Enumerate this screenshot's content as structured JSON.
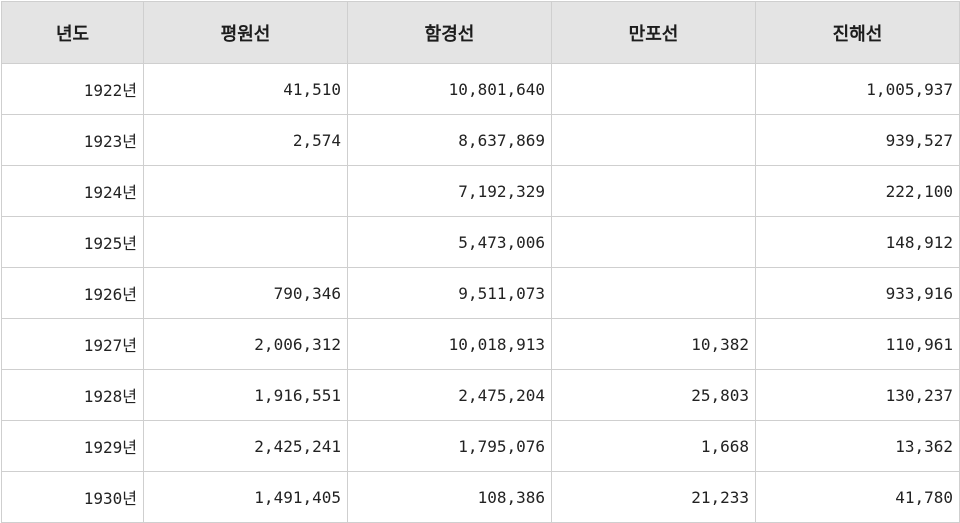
{
  "table": {
    "headers": [
      "년도",
      "평원선",
      "함경선",
      "만포선",
      "진해선"
    ],
    "rows": [
      [
        "1922년",
        "41,510",
        "10,801,640",
        "",
        "1,005,937"
      ],
      [
        "1923년",
        "2,574",
        "8,637,869",
        "",
        "939,527"
      ],
      [
        "1924년",
        "",
        "7,192,329",
        "",
        "222,100"
      ],
      [
        "1925년",
        "",
        "5,473,006",
        "",
        "148,912"
      ],
      [
        "1926년",
        "790,346",
        "9,511,073",
        "",
        "933,916"
      ],
      [
        "1927년",
        "2,006,312",
        "10,018,913",
        "10,382",
        "110,961"
      ],
      [
        "1928년",
        "1,916,551",
        "2,475,204",
        "25,803",
        "130,237"
      ],
      [
        "1929년",
        "2,425,241",
        "1,795,076",
        "1,668",
        "13,362"
      ],
      [
        "1930년",
        "1,491,405",
        "108,386",
        "21,233",
        "41,780"
      ]
    ]
  }
}
